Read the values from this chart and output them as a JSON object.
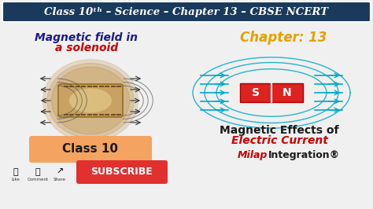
{
  "bg_color": "#f0f0f0",
  "header_bg": "#1a3a5c",
  "header_text": "Class 10ᵗʰ – Science – Chapter 13 – CBSE NCERT",
  "header_color": "#ffffff",
  "title_line1": "Magnetic field in",
  "title_line2": "a solenoid",
  "title_color1": "#1a1a8c",
  "title_color2": "#cc0000",
  "chapter_text": "Chapter: 13",
  "chapter_color": "#e8a000",
  "class_box_color": "#f4a460",
  "class_text": "Class 10",
  "subscribe_color": "#e03030",
  "subscribe_text": "SUBSCRIBE",
  "effects_line1": "Magnetic Effects of",
  "effects_line2": "Electric Current",
  "effects_color1": "#1a1a1a",
  "effects_color2": "#cc0000",
  "milap_color1": "#cc0000",
  "milap_color2": "#1a1a1a",
  "milap_text1": "Milap",
  "milap_text2": "Integration",
  "field_line_color": "#00aacc",
  "magnet_color": "#dd2222",
  "solenoid_color": "#c8a060"
}
